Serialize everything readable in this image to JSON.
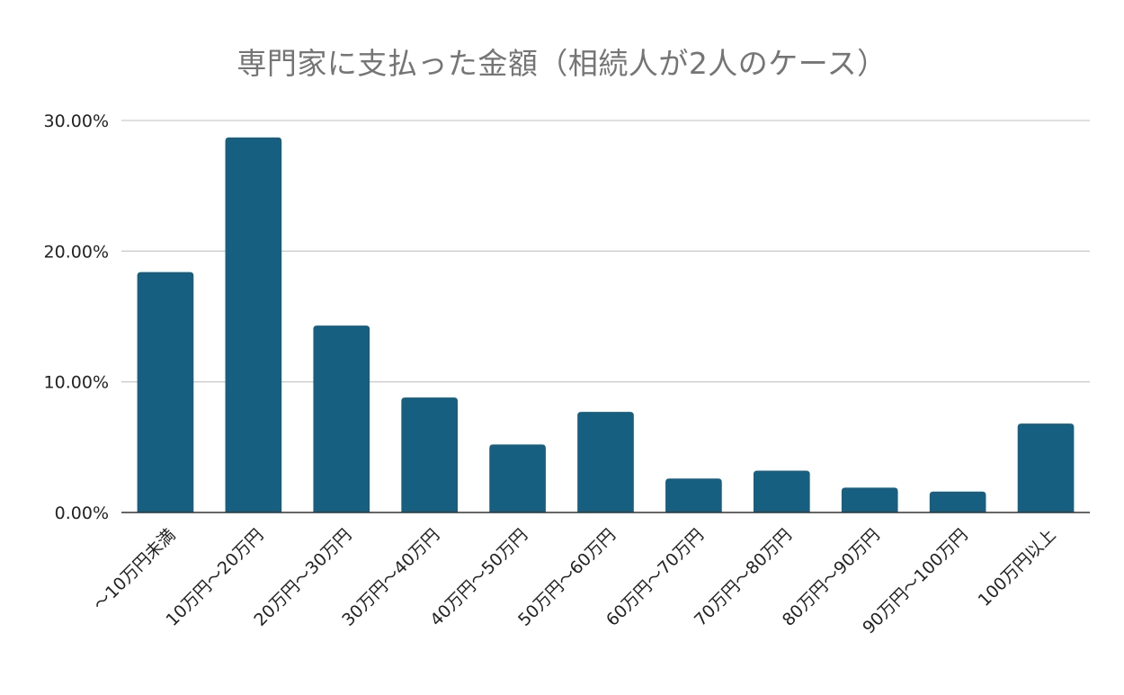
{
  "chart_data": {
    "type": "bar",
    "title": "専門家に支払った金額（相続人が2人のケース）",
    "xlabel": "",
    "ylabel": "",
    "ylim": [
      0,
      30
    ],
    "yticks": [
      "0.00%",
      "10.00%",
      "20.00%",
      "30.00%"
    ],
    "ytick_values": [
      0,
      10,
      20,
      30
    ],
    "grid": true,
    "legend": "none",
    "bar_color": "#165f80",
    "grid_color": "#cccccc",
    "axis_color": "#333333",
    "categories": [
      "～10万円未満",
      "10万円～20万円",
      "20万円～30万円",
      "30万円～40万円",
      "40万円～50万円",
      "50万円～60万円",
      "60万円～70万円",
      "70万円～80万円",
      "80万円～90万円",
      "90万円～100万円",
      "100万円以上"
    ],
    "values": [
      18.4,
      28.7,
      14.3,
      8.8,
      5.2,
      7.7,
      2.6,
      3.2,
      1.9,
      1.6,
      6.8
    ]
  }
}
